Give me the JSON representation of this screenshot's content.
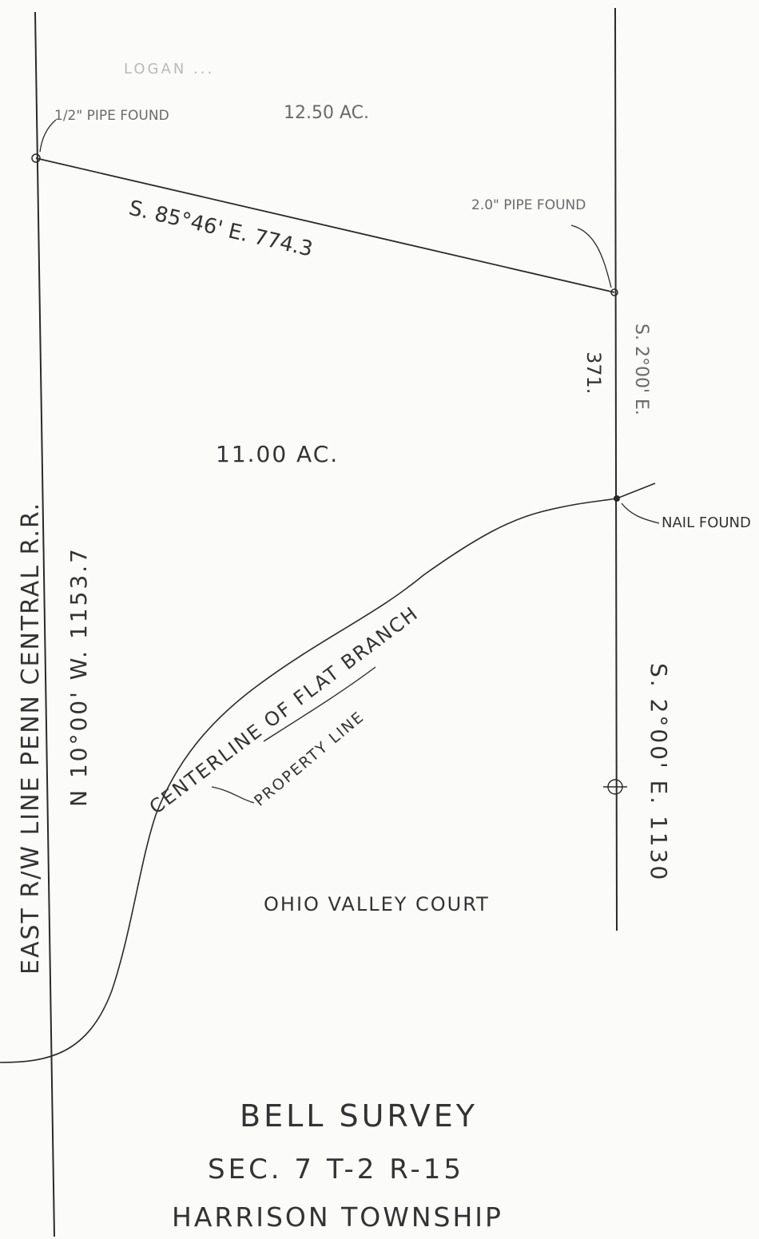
{
  "survey": {
    "title": "BELL SURVEY",
    "section": "SEC. 7 T-2 R-15",
    "township": "HARRISON TOWNSHIP"
  },
  "labels": {
    "north_owner": "LOGAN ...",
    "north_acreage": "12.50 AC.",
    "parcel_acreage": "11.00 AC.",
    "south_owner": "OHIO VALLEY COURT",
    "west_row": "EAST R/W LINE PENN CENTRAL R.R.",
    "west_bearing": "N 10°00' W. 1153.7",
    "north_bearing": "S. 85°46' E. 774.3",
    "east_upper_distance": "371.",
    "east_upper_bearing": "S. 2°00' E.",
    "east_lower_bearing": "S. 2°00' E. 1130",
    "centerline": "CENTERLINE OF FLAT BRANCH",
    "property_line": "PROPERTY LINE"
  },
  "monuments": {
    "nw_corner": "1/2\" PIPE FOUND",
    "ne_corner": "2.0\" PIPE FOUND",
    "east_nail": "NAIL FOUND"
  }
}
